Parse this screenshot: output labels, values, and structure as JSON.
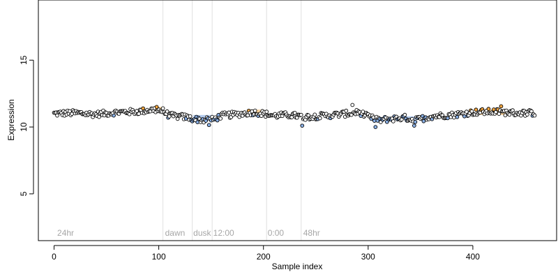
{
  "chart_data": {
    "type": "scatter",
    "title": "",
    "xlabel": "Sample index",
    "ylabel": "Expression",
    "xlim": [
      -15,
      480
    ],
    "ylim": [
      1.5,
      19.5
    ],
    "x_ticks": [
      0,
      100,
      200,
      300,
      400
    ],
    "y_ticks": [
      5,
      10,
      15
    ],
    "grid": false,
    "legend": "none",
    "colors": {
      "point_outline": "#000000",
      "neutral_fill": "#ffffff",
      "low_fill": "#8ab0e6",
      "high_fill": "#f4a640",
      "vline": "#e0e0e0",
      "annotation": "#a6a6a6",
      "shade_low": "#a9c4ec",
      "shade_high": "#f5c98a"
    },
    "vlines": [
      104,
      132,
      151,
      203,
      236
    ],
    "annotations": [
      {
        "label": "24hr",
        "x": 3
      },
      {
        "label": "dawn",
        "x": 106
      },
      {
        "label": "dusk",
        "x": 133
      },
      {
        "label": "12:00",
        "x": 152
      },
      {
        "label": "0:00",
        "x": 204
      },
      {
        "label": "48hr",
        "x": 238
      }
    ],
    "shading": [
      {
        "from": 133,
        "to": 152,
        "y": 10.7,
        "tone": "low"
      },
      {
        "from": 96,
        "to": 104,
        "y": 11.3,
        "tone": "high"
      },
      {
        "from": 186,
        "to": 200,
        "y": 11.1,
        "tone": "high"
      },
      {
        "from": 406,
        "to": 432,
        "y": 11.1,
        "tone": "high"
      },
      {
        "from": 335,
        "to": 345,
        "y": 10.6,
        "tone": "low"
      }
    ],
    "series": [
      {
        "n": 460,
        "mean_curve": [
          [
            0,
            11.0
          ],
          [
            20,
            11.05
          ],
          [
            40,
            10.95
          ],
          [
            60,
            11.1
          ],
          [
            80,
            11.15
          ],
          [
            95,
            11.3
          ],
          [
            104,
            11.2
          ],
          [
            110,
            10.85
          ],
          [
            125,
            10.75
          ],
          [
            133,
            10.6
          ],
          [
            145,
            10.5
          ],
          [
            152,
            10.55
          ],
          [
            160,
            10.85
          ],
          [
            175,
            10.95
          ],
          [
            190,
            11.1
          ],
          [
            200,
            11.0
          ],
          [
            210,
            10.85
          ],
          [
            225,
            10.9
          ],
          [
            240,
            10.75
          ],
          [
            260,
            10.85
          ],
          [
            280,
            11.0
          ],
          [
            292,
            11.1
          ],
          [
            300,
            10.75
          ],
          [
            310,
            10.5
          ],
          [
            320,
            10.6
          ],
          [
            335,
            10.7
          ],
          [
            345,
            10.5
          ],
          [
            360,
            10.8
          ],
          [
            380,
            10.9
          ],
          [
            400,
            11.1
          ],
          [
            420,
            11.15
          ],
          [
            440,
            11.05
          ],
          [
            460,
            11.05
          ]
        ],
        "dips": [
          {
            "x": 148,
            "y": 10.15
          },
          {
            "x": 237,
            "y": 10.1
          },
          {
            "x": 307,
            "y": 10.0
          },
          {
            "x": 344,
            "y": 10.1
          }
        ],
        "peaks": [
          {
            "x": 285,
            "y": 11.65
          },
          {
            "x": 427,
            "y": 11.55
          },
          {
            "x": 98,
            "y": 11.5
          }
        ]
      }
    ]
  }
}
